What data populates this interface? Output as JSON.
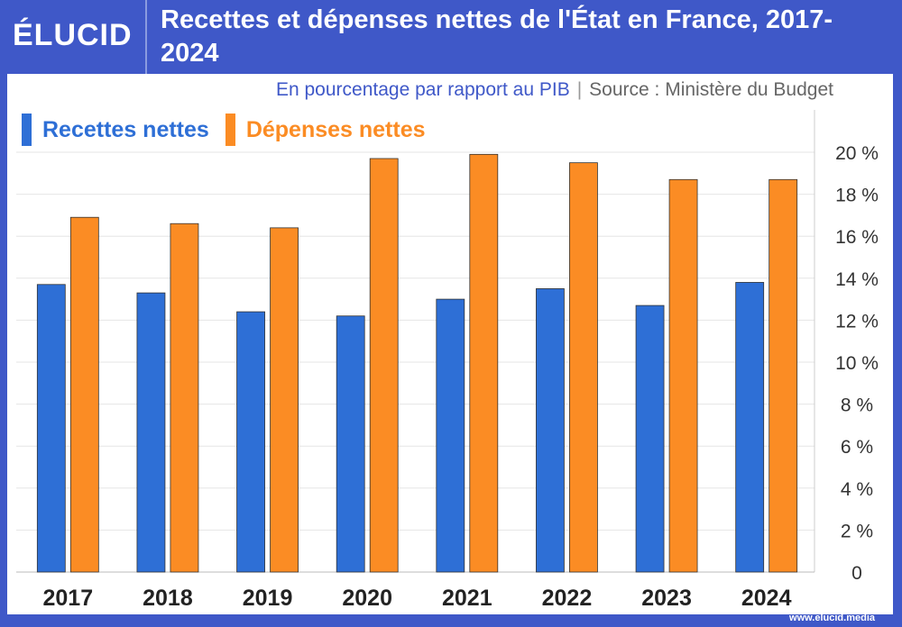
{
  "logo": "ÉLUCID",
  "footer": "www.elucid.media",
  "chart_data": {
    "type": "bar",
    "title": "Recettes et dépenses nettes de l'État en France, 2017-2024",
    "subtitle": "En pourcentage par rapport au PIB",
    "source": "Source : Ministère du Budget",
    "categories": [
      "2017",
      "2018",
      "2019",
      "2020",
      "2021",
      "2022",
      "2023",
      "2024"
    ],
    "series": [
      {
        "name": "Recettes nettes",
        "color": "#2e6fd6",
        "values": [
          13.7,
          13.3,
          12.4,
          12.2,
          13.0,
          13.5,
          12.7,
          13.8
        ]
      },
      {
        "name": "Dépenses nettes",
        "color": "#fb8c24",
        "values": [
          16.9,
          16.6,
          16.4,
          19.7,
          19.9,
          19.5,
          18.7,
          18.7
        ]
      }
    ],
    "ylim": [
      0,
      22
    ],
    "yticks": [
      "0",
      "2 %",
      "4 %",
      "6 %",
      "8 %",
      "10 %",
      "12 %",
      "14 %",
      "16 %",
      "18 %",
      "20 %"
    ],
    "ytick_values": [
      0,
      2,
      4,
      6,
      8,
      10,
      12,
      14,
      16,
      18,
      20
    ],
    "grid": true,
    "legend": "top-left",
    "yaxis_side": "right"
  }
}
